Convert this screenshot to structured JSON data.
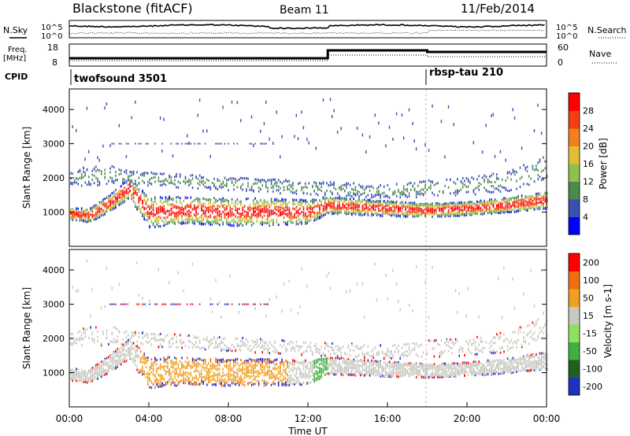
{
  "header": {
    "site": "Blackstone (fitACF)",
    "beam": "Beam 11",
    "date": "11/Feb/2014"
  },
  "noise_panel": {
    "left_label": "N.Sky",
    "right_label": "N.Search",
    "left_ticks": [
      "10^5",
      "10^0"
    ],
    "right_ticks": [
      "10^5",
      "10^0"
    ]
  },
  "freq_panel": {
    "left_label_line1": "Freq.",
    "left_label_line2": "[MHz]",
    "left_ticks": [
      "18",
      "8"
    ],
    "right_label": "Nave",
    "right_ticks": [
      "60",
      "0"
    ]
  },
  "cpid": {
    "label": "CPID",
    "segments": [
      {
        "name": "twofsound 3501",
        "start_hour": 0
      },
      {
        "name": "rbsp-tau 210",
        "start_hour": 18
      }
    ]
  },
  "power_panel": {
    "ylabel": "Slant Range [km]",
    "yticks": [
      "1000",
      "2000",
      "3000",
      "4000"
    ],
    "colorbar_label": "Power [dB]",
    "colorbar_ticks": [
      "4",
      "8",
      "12",
      "16",
      "20",
      "24",
      "28"
    ],
    "colors": [
      "#0000ff",
      "#3a4fb0",
      "#4a8a4a",
      "#8fc04a",
      "#e0c030",
      "#f08020",
      "#f04010",
      "#ff0000"
    ]
  },
  "velocity_panel": {
    "ylabel": "Slant Range [km]",
    "yticks": [
      "1000",
      "2000",
      "3000",
      "4000"
    ],
    "colorbar_label": "Velocity [m s-1]",
    "colorbar_ticks": [
      "200",
      "100",
      "50",
      "15",
      "-15",
      "-50",
      "-100",
      "-200"
    ],
    "colors": [
      "#2030c0",
      "#206020",
      "#40b040",
      "#90e060",
      "#c8c8c0",
      "#f0a020",
      "#f07010",
      "#ff0000"
    ]
  },
  "x_axis": {
    "label": "Time UT",
    "ticks": [
      "00:00",
      "04:00",
      "08:00",
      "12:00",
      "16:00",
      "20:00",
      "00:00"
    ]
  },
  "chart_data": {
    "type": "heatmap",
    "x_unit": "hours UT",
    "xlim": [
      0,
      24
    ],
    "ylim": [
      0,
      4600
    ],
    "scatter_bands": [
      {
        "name": "main",
        "x": [
          0,
          1,
          2,
          3,
          4,
          6,
          8,
          10,
          12,
          13,
          16,
          18,
          20,
          22,
          24
        ],
        "y": [
          950,
          900,
          1250,
          1700,
          1000,
          1050,
          1000,
          1000,
          1000,
          1200,
          1100,
          1050,
          1100,
          1200,
          1350
        ],
        "width": [
          180,
          200,
          250,
          300,
          450,
          400,
          400,
          400,
          350,
          250,
          220,
          200,
          200,
          220,
          250
        ]
      },
      {
        "name": "upper",
        "x": [
          0,
          2,
          3,
          12,
          16,
          18,
          20,
          22,
          24
        ],
        "y": [
          2000,
          2100,
          2000,
          1700,
          1600,
          1700,
          1750,
          1900,
          2300
        ],
        "width": [
          250,
          300,
          200,
          200,
          200,
          250,
          250,
          300,
          350
        ]
      }
    ],
    "power_range": [
      0,
      32
    ],
    "velocity_range": [
      -250,
      250
    ]
  }
}
